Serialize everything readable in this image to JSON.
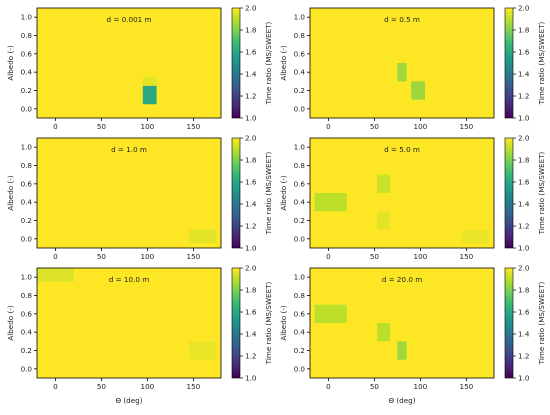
{
  "colormap": {
    "stops": [
      "#440154",
      "#482878",
      "#3e4989",
      "#31688e",
      "#26828e",
      "#1f9e89",
      "#35b779",
      "#6ece58",
      "#b5de2b",
      "#fde725"
    ],
    "vmin": 1.0,
    "vmax": 2.0,
    "ticks": [
      "1.0",
      "1.2",
      "1.4",
      "1.6",
      "1.8",
      "2.0"
    ],
    "label": "Time ratio (MS/SWEET)"
  },
  "chart_data": [
    {
      "type": "heatmap",
      "annotation": "d = 0.001 m",
      "ylabel": "Albedo (-)",
      "xlabel": "",
      "xlim": [
        -20,
        180
      ],
      "ylim": [
        -0.1,
        1.1
      ],
      "x_ticks": [
        "0",
        "50",
        "100",
        "150"
      ],
      "y_ticks": [
        "0.0",
        "0.2",
        "0.4",
        "0.6",
        "0.8",
        "1.0"
      ],
      "background_value": 2.0,
      "cells": [
        {
          "x": [
            95,
            110
          ],
          "y": [
            0.25,
            0.35
          ],
          "value": 1.96
        },
        {
          "x": [
            95,
            110
          ],
          "y": [
            0.15,
            0.25
          ],
          "value": 1.6
        },
        {
          "x": [
            95,
            110
          ],
          "y": [
            0.05,
            0.15
          ],
          "value": 1.6
        }
      ]
    },
    {
      "type": "heatmap",
      "annotation": "d = 0.5 m",
      "ylabel": "Albedo (-)",
      "xlabel": "",
      "xlim": [
        -20,
        180
      ],
      "ylim": [
        -0.1,
        1.1
      ],
      "x_ticks": [
        "0",
        "50",
        "100",
        "150"
      ],
      "y_ticks": [
        "0.0",
        "0.2",
        "0.4",
        "0.6",
        "0.8",
        "1.0"
      ],
      "background_value": 2.0,
      "cells": [
        {
          "x": [
            75,
            85
          ],
          "y": [
            0.3,
            0.5
          ],
          "value": 1.85
        },
        {
          "x": [
            90,
            105
          ],
          "y": [
            0.1,
            0.3
          ],
          "value": 1.85
        }
      ]
    },
    {
      "type": "heatmap",
      "annotation": "d = 1.0 m",
      "ylabel": "Albedo (-)",
      "xlabel": "",
      "xlim": [
        -20,
        180
      ],
      "ylim": [
        -0.1,
        1.1
      ],
      "x_ticks": [
        "0",
        "50",
        "100",
        "150"
      ],
      "y_ticks": [
        "0.0",
        "0.2",
        "0.4",
        "0.6",
        "0.8",
        "1.0"
      ],
      "background_value": 2.0,
      "cells": [
        {
          "x": [
            145,
            175
          ],
          "y": [
            -0.05,
            0.1
          ],
          "value": 1.96
        }
      ]
    },
    {
      "type": "heatmap",
      "annotation": "d = 5.0 m",
      "ylabel": "Albedo (-)",
      "xlabel": "",
      "xlim": [
        -20,
        180
      ],
      "ylim": [
        -0.1,
        1.1
      ],
      "x_ticks": [
        "0",
        "50",
        "100",
        "150"
      ],
      "y_ticks": [
        "0.0",
        "0.2",
        "0.4",
        "0.6",
        "0.8",
        "1.0"
      ],
      "background_value": 2.0,
      "cells": [
        {
          "x": [
            -15,
            20
          ],
          "y": [
            0.3,
            0.5
          ],
          "value": 1.9
        },
        {
          "x": [
            53,
            67
          ],
          "y": [
            0.5,
            0.7
          ],
          "value": 1.92
        },
        {
          "x": [
            53,
            67
          ],
          "y": [
            0.1,
            0.3
          ],
          "value": 1.96
        },
        {
          "x": [
            145,
            175
          ],
          "y": [
            -0.05,
            0.1
          ],
          "value": 1.97
        }
      ]
    },
    {
      "type": "heatmap",
      "annotation": "d = 10.0 m",
      "ylabel": "Albedo (-)",
      "xlabel": "Θ (deg)",
      "xlim": [
        -20,
        180
      ],
      "ylim": [
        -0.1,
        1.1
      ],
      "x_ticks": [
        "0",
        "50",
        "100",
        "150"
      ],
      "y_ticks": [
        "0.0",
        "0.2",
        "0.4",
        "0.6",
        "0.8",
        "1.0"
      ],
      "background_value": 2.0,
      "cells": [
        {
          "x": [
            -20,
            20
          ],
          "y": [
            0.95,
            1.1
          ],
          "value": 1.95
        },
        {
          "x": [
            145,
            175
          ],
          "y": [
            0.1,
            0.3
          ],
          "value": 1.97
        }
      ]
    },
    {
      "type": "heatmap",
      "annotation": "d = 20.0 m",
      "ylabel": "Albedo (-)",
      "xlabel": "Θ (deg)",
      "xlim": [
        -20,
        180
      ],
      "ylim": [
        -0.1,
        1.1
      ],
      "x_ticks": [
        "0",
        "50",
        "100",
        "150"
      ],
      "y_ticks": [
        "0.0",
        "0.2",
        "0.4",
        "0.6",
        "0.8",
        "1.0"
      ],
      "background_value": 2.0,
      "cells": [
        {
          "x": [
            -15,
            20
          ],
          "y": [
            0.5,
            0.7
          ],
          "value": 1.9
        },
        {
          "x": [
            53,
            67
          ],
          "y": [
            0.3,
            0.5
          ],
          "value": 1.9
        },
        {
          "x": [
            75,
            85
          ],
          "y": [
            0.1,
            0.3
          ],
          "value": 1.85
        }
      ]
    }
  ]
}
